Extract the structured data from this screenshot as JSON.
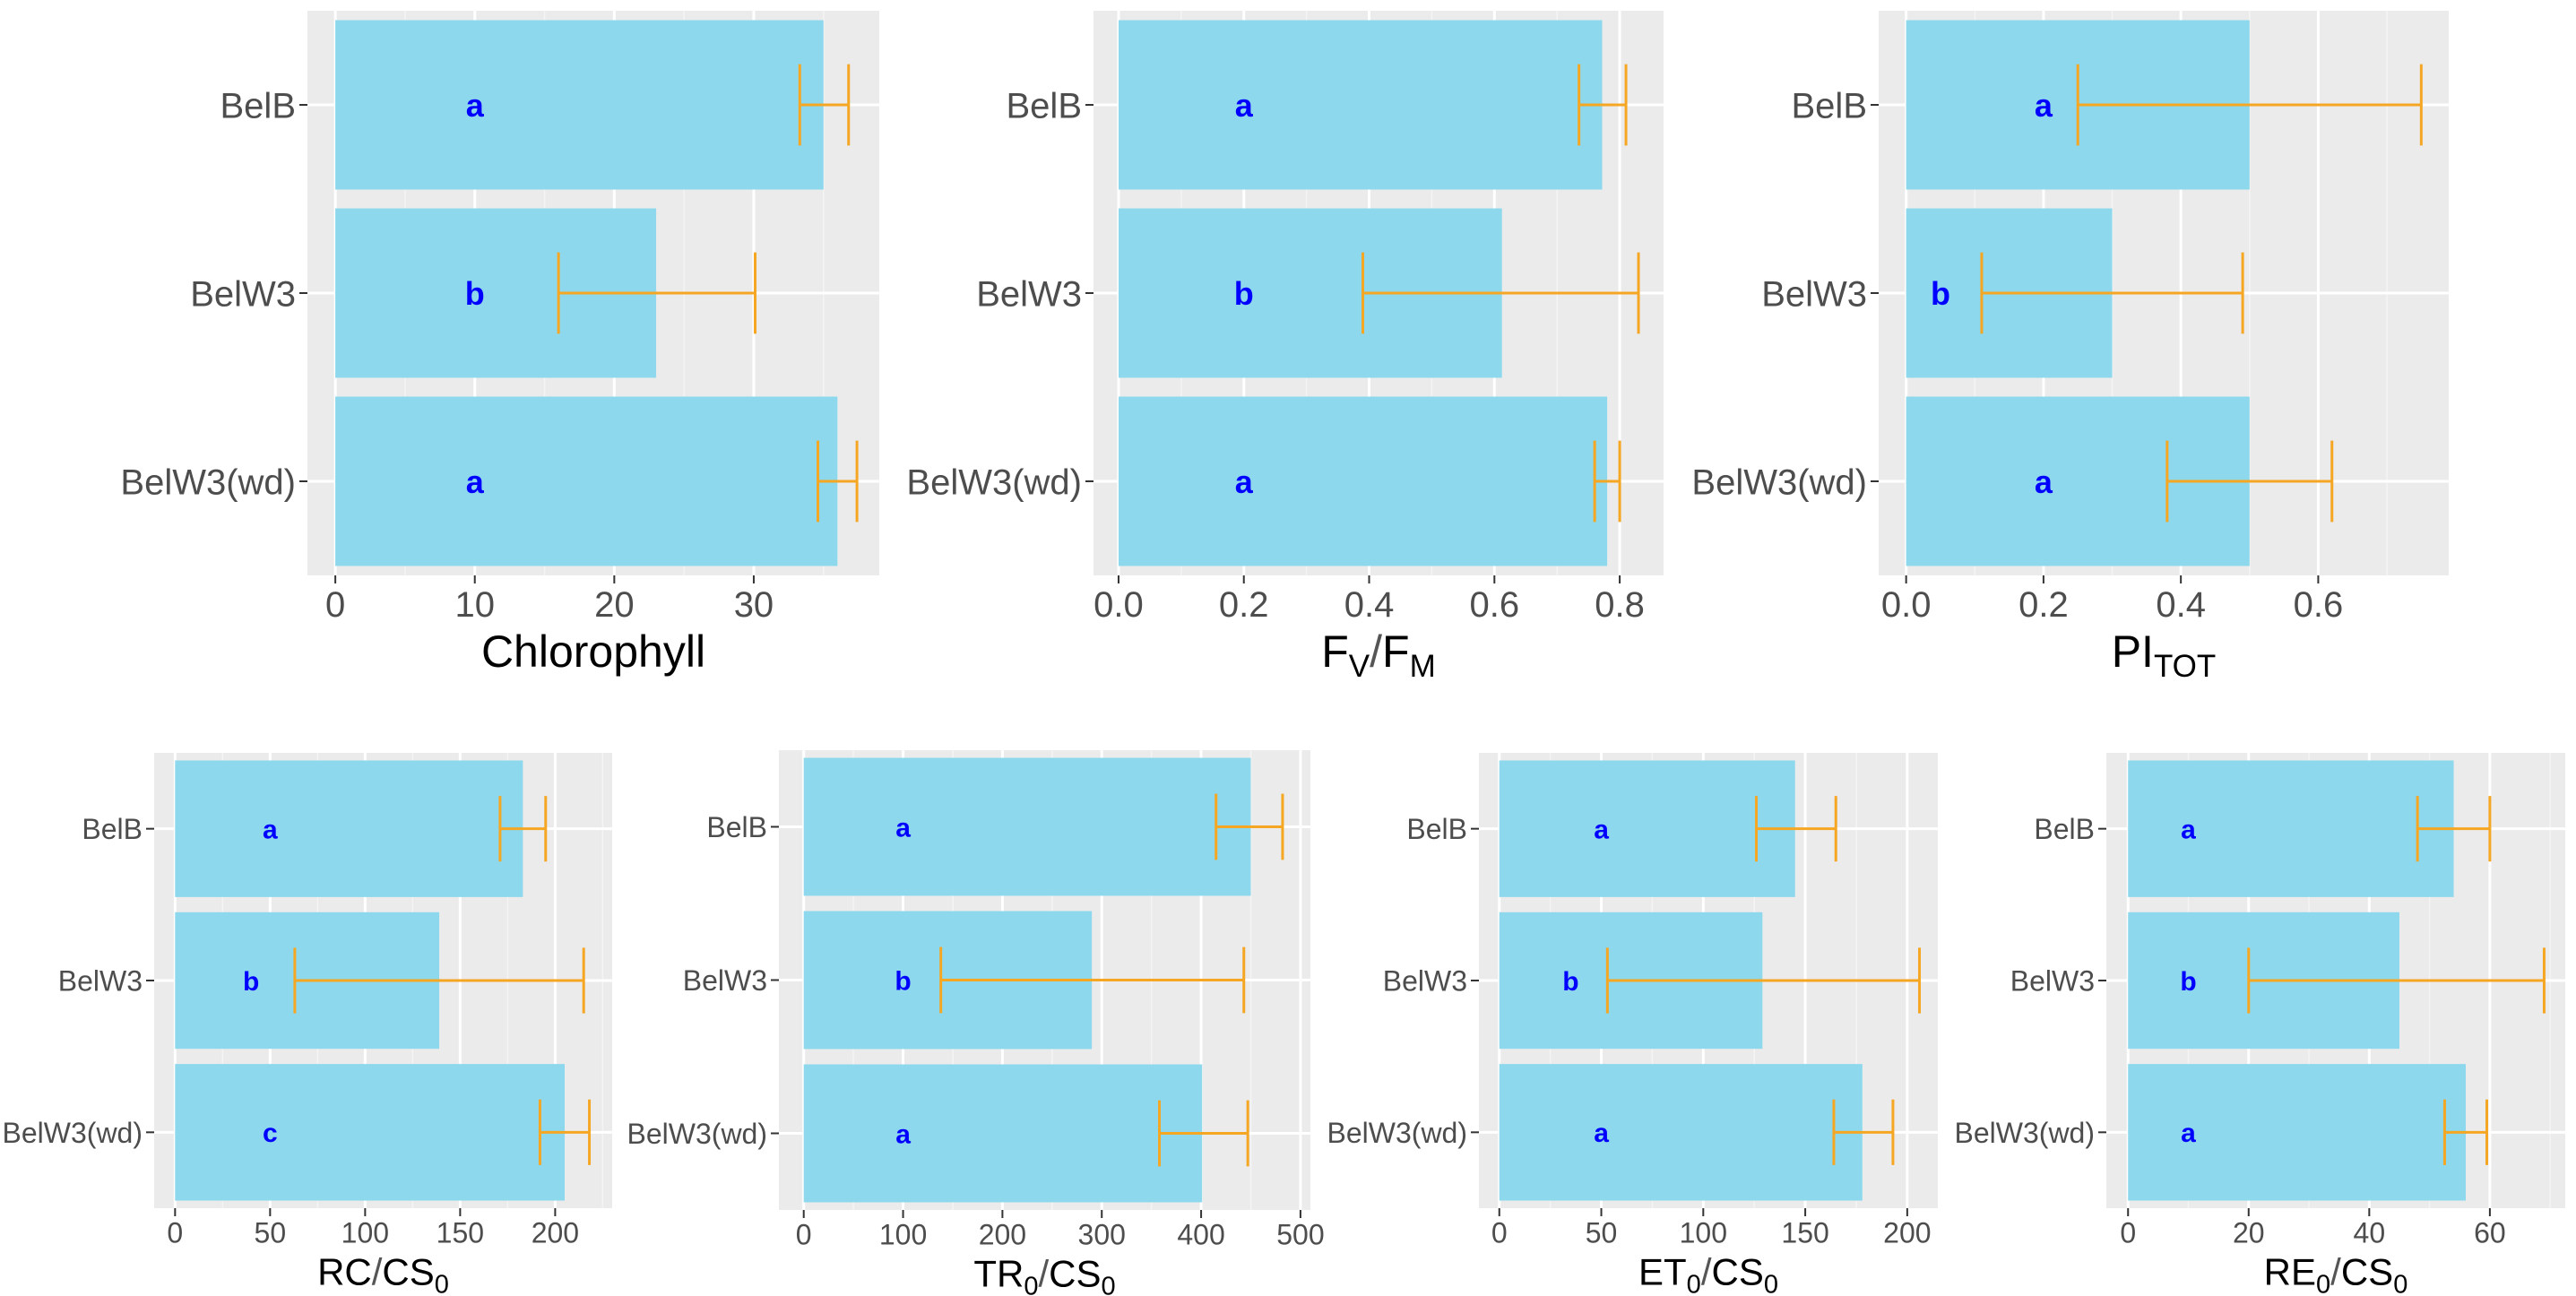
{
  "colors": {
    "panel_bg": "#ebebeb",
    "grid_major": "#ffffff",
    "grid_minor": "#f4f4f4",
    "bar": "#8dd8ed",
    "error_bar": "#f5a623",
    "letter": "#0000ff",
    "tick_text": "#4d4d4d",
    "axis_title": "#000000"
  },
  "chart_data": [
    {
      "type": "bar",
      "orientation": "horizontal",
      "title": "",
      "xlabel": "Chlorophyll",
      "xlabel_parts": [
        {
          "t": "Chlorophyll"
        }
      ],
      "ylabel": "",
      "categories": [
        "BelB",
        "BelW3",
        "BelW3(wd)"
      ],
      "values": [
        35,
        23,
        36
      ],
      "error_low": [
        33.3,
        16
      ],
      "error_low_full": [
        33.3,
        16,
        34.6
      ],
      "error_high": [
        36.8,
        30.1,
        37.4
      ],
      "letters": [
        "a",
        "b",
        "a"
      ],
      "letter_x": [
        10,
        10,
        10
      ],
      "xlim": [
        -2,
        39
      ],
      "xticks": [
        0,
        10,
        20,
        30
      ],
      "xtick_labels": [
        "0",
        "10",
        "20",
        "30"
      ],
      "grid": true
    },
    {
      "type": "bar",
      "orientation": "horizontal",
      "title": "",
      "xlabel": "FV/FM",
      "xlabel_parts": [
        {
          "t": "F"
        },
        {
          "t": "V",
          "sub": true
        },
        {
          "t": "/",
          "slash": true
        },
        {
          "t": "F"
        },
        {
          "t": "M",
          "sub": true
        }
      ],
      "ylabel": "",
      "categories": [
        "BelB",
        "BelW3",
        "BelW3(wd)"
      ],
      "values": [
        0.772,
        0.612,
        0.78
      ],
      "error_low_full": [
        0.735,
        0.39,
        0.76
      ],
      "error_high": [
        0.81,
        0.83,
        0.8
      ],
      "letters": [
        "a",
        "b",
        "a"
      ],
      "letter_x": [
        0.2,
        0.2,
        0.2
      ],
      "xlim": [
        -0.04,
        0.87
      ],
      "xticks": [
        0.0,
        0.2,
        0.4,
        0.6,
        0.8
      ],
      "xtick_labels": [
        "0.0",
        "0.2",
        "0.4",
        "0.6",
        "0.8"
      ],
      "grid": true
    },
    {
      "type": "bar",
      "orientation": "horizontal",
      "title": "",
      "xlabel": "PITOT",
      "xlabel_parts": [
        {
          "t": "PI"
        },
        {
          "t": "TOT",
          "sub": true
        }
      ],
      "ylabel": "",
      "categories": [
        "BelB",
        "BelW3",
        "BelW3(wd)"
      ],
      "values": [
        0.5,
        0.3,
        0.5
      ],
      "error_low_full": [
        0.25,
        0.11,
        0.38
      ],
      "error_high": [
        0.75,
        0.49,
        0.62
      ],
      "letters": [
        "a",
        "b",
        "a"
      ],
      "letter_x": [
        0.2,
        0.05,
        0.2
      ],
      "xlim": [
        -0.04,
        0.79
      ],
      "xticks": [
        0.0,
        0.2,
        0.4,
        0.6
      ],
      "xtick_labels": [
        "0.0",
        "0.2",
        "0.4",
        "0.6"
      ],
      "grid": true
    },
    {
      "type": "bar",
      "orientation": "horizontal",
      "title": "",
      "xlabel": "RC/CS0",
      "xlabel_parts": [
        {
          "t": "RC"
        },
        {
          "t": "/",
          "slash": true
        },
        {
          "t": "CS"
        },
        {
          "t": "0",
          "sub": true
        }
      ],
      "ylabel": "",
      "categories": [
        "BelB",
        "BelW3",
        "BelW3(wd)"
      ],
      "values": [
        183,
        139,
        205
      ],
      "error_low_full": [
        171,
        63,
        192
      ],
      "error_high": [
        195,
        215,
        218
      ],
      "letters": [
        "a",
        "b",
        "c"
      ],
      "letter_x": [
        50,
        40,
        50
      ],
      "xlim": [
        -11,
        230
      ],
      "xticks": [
        0,
        50,
        100,
        150,
        200
      ],
      "xtick_labels": [
        "0",
        "50",
        "100",
        "150",
        "200"
      ],
      "grid": true
    },
    {
      "type": "bar",
      "orientation": "horizontal",
      "title": "",
      "xlabel": "TR0/CS0",
      "xlabel_parts": [
        {
          "t": "TR"
        },
        {
          "t": "0",
          "sub": true
        },
        {
          "t": "/",
          "slash": true
        },
        {
          "t": "CS"
        },
        {
          "t": "0",
          "sub": true
        }
      ],
      "ylabel": "",
      "categories": [
        "BelB",
        "BelW3",
        "BelW3(wd)"
      ],
      "values": [
        450,
        290,
        401
      ],
      "error_low_full": [
        415,
        138,
        358
      ],
      "error_high": [
        482,
        443,
        447
      ],
      "letters": [
        "a",
        "b",
        "a"
      ],
      "letter_x": [
        100,
        100,
        100
      ],
      "xlim": [
        -25,
        510
      ],
      "xticks": [
        0,
        100,
        200,
        300,
        400,
        500
      ],
      "xtick_labels": [
        "0",
        "100",
        "200",
        "300",
        "400",
        "500"
      ],
      "grid": true
    },
    {
      "type": "bar",
      "orientation": "horizontal",
      "title": "",
      "xlabel": "ET0/CS0",
      "xlabel_parts": [
        {
          "t": "ET"
        },
        {
          "t": "0",
          "sub": true
        },
        {
          "t": "/",
          "slash": true
        },
        {
          "t": "CS"
        },
        {
          "t": "0",
          "sub": true
        }
      ],
      "ylabel": "",
      "categories": [
        "BelB",
        "BelW3",
        "BelW3(wd)"
      ],
      "values": [
        145,
        129,
        178
      ],
      "error_low_full": [
        126,
        53,
        164
      ],
      "error_high": [
        165,
        206,
        193
      ],
      "letters": [
        "a",
        "b",
        "a"
      ],
      "letter_x": [
        50,
        35,
        50
      ],
      "xlim": [
        -10,
        215
      ],
      "xticks": [
        0,
        50,
        100,
        150,
        200
      ],
      "xtick_labels": [
        "0",
        "50",
        "100",
        "150",
        "200"
      ],
      "grid": true
    },
    {
      "type": "bar",
      "orientation": "horizontal",
      "title": "",
      "xlabel": "RE0/CS0",
      "xlabel_parts": [
        {
          "t": "RE"
        },
        {
          "t": "0",
          "sub": true
        },
        {
          "t": "/",
          "slash": true
        },
        {
          "t": "CS"
        },
        {
          "t": "0",
          "sub": true
        }
      ],
      "ylabel": "",
      "categories": [
        "BelB",
        "BelW3",
        "BelW3(wd)"
      ],
      "values": [
        54,
        45,
        56
      ],
      "error_low_full": [
        48,
        20,
        52.5
      ],
      "error_high": [
        60,
        69,
        59.5
      ],
      "letters": [
        "a",
        "b",
        "a"
      ],
      "letter_x": [
        10,
        10,
        10
      ],
      "xlim": [
        -3.6,
        72.5
      ],
      "xticks": [
        0,
        20,
        40,
        60
      ],
      "xtick_labels": [
        "0",
        "20",
        "40",
        "60"
      ],
      "grid": true
    }
  ]
}
